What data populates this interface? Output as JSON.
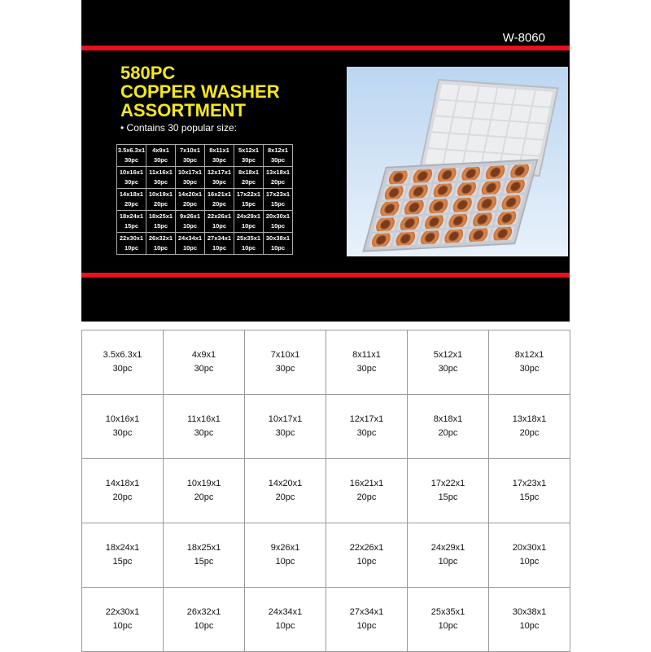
{
  "model": "W-8060",
  "title": [
    "580PC",
    "COPPER WASHER",
    "ASSORTMENT"
  ],
  "bullet": "• Contains 30 popular size:",
  "colors": {
    "stripe": "#e8101c",
    "title": "#f5e81a",
    "panel": "#000000"
  },
  "sizes": [
    [
      {
        "size": "3.5x6.3x1",
        "qty": "30pc"
      },
      {
        "size": "4x9x1",
        "qty": "30pc"
      },
      {
        "size": "7x10x1",
        "qty": "30pc"
      },
      {
        "size": "8x11x1",
        "qty": "30pc"
      },
      {
        "size": "5x12x1",
        "qty": "30pc"
      },
      {
        "size": "8x12x1",
        "qty": "30pc"
      }
    ],
    [
      {
        "size": "10x16x1",
        "qty": "30pc"
      },
      {
        "size": "11x16x1",
        "qty": "30pc"
      },
      {
        "size": "10x17x1",
        "qty": "30pc"
      },
      {
        "size": "12x17x1",
        "qty": "30pc"
      },
      {
        "size": "8x18x1",
        "qty": "20pc"
      },
      {
        "size": "13x18x1",
        "qty": "20pc"
      }
    ],
    [
      {
        "size": "14x18x1",
        "qty": "20pc"
      },
      {
        "size": "10x19x1",
        "qty": "20pc"
      },
      {
        "size": "14x20x1",
        "qty": "20pc"
      },
      {
        "size": "16x21x1",
        "qty": "20pc"
      },
      {
        "size": "17x22x1",
        "qty": "15pc"
      },
      {
        "size": "17x23x1",
        "qty": "15pc"
      }
    ],
    [
      {
        "size": "18x24x1",
        "qty": "15pc"
      },
      {
        "size": "18x25x1",
        "qty": "15pc"
      },
      {
        "size": "9x26x1",
        "qty": "10pc"
      },
      {
        "size": "22x26x1",
        "qty": "10pc"
      },
      {
        "size": "24x29x1",
        "qty": "10pc"
      },
      {
        "size": "20x30x1",
        "qty": "10pc"
      }
    ],
    [
      {
        "size": "22x30x1",
        "qty": "10pc"
      },
      {
        "size": "26x32x1",
        "qty": "10pc"
      },
      {
        "size": "24x34x1",
        "qty": "10pc"
      },
      {
        "size": "27x34x1",
        "qty": "10pc"
      },
      {
        "size": "25x35x1",
        "qty": "10pc"
      },
      {
        "size": "30x38x1",
        "qty": "10pc"
      }
    ]
  ]
}
